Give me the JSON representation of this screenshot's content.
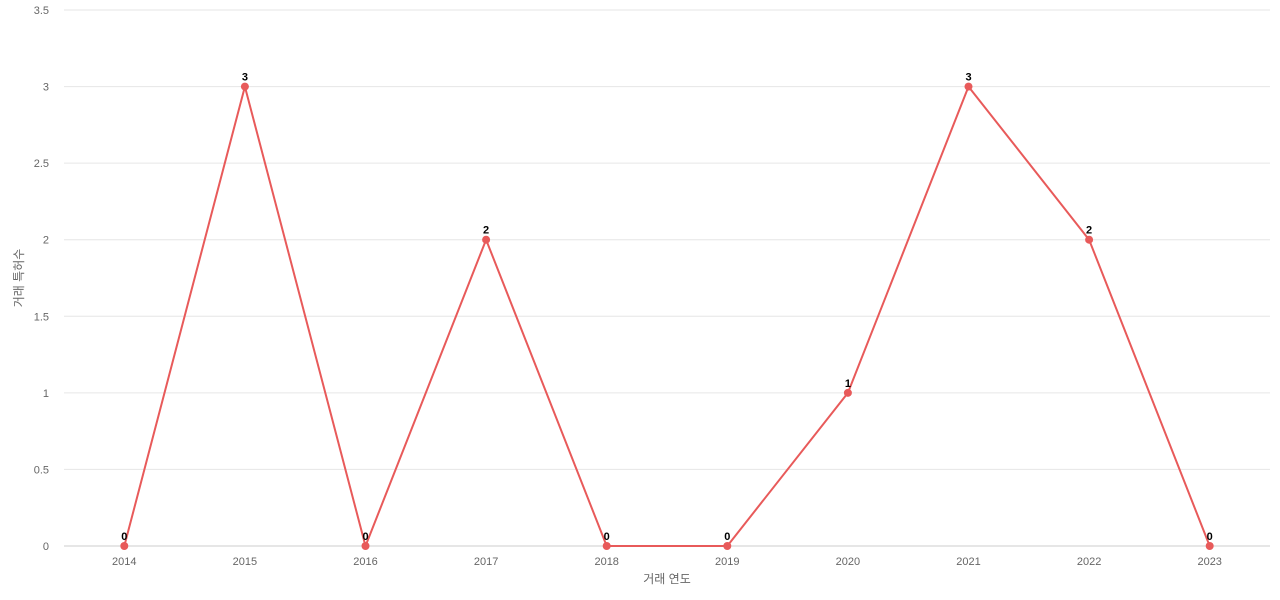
{
  "chart_data": {
    "type": "line",
    "title": "",
    "xlabel": "거래 연도",
    "ylabel": "거래 특허수",
    "categories": [
      "2014",
      "2015",
      "2016",
      "2017",
      "2018",
      "2019",
      "2020",
      "2021",
      "2022",
      "2023"
    ],
    "series": [
      {
        "values": [
          0,
          3,
          0,
          2,
          0,
          0,
          1,
          3,
          2,
          0
        ]
      }
    ],
    "data_labels": [
      "0",
      "3",
      "0",
      "2",
      "0",
      "0",
      "1",
      "3",
      "2",
      "0"
    ],
    "ylim": [
      0,
      3.5
    ],
    "yticks": [
      0,
      0.5,
      1,
      1.5,
      2,
      2.5,
      3,
      3.5
    ],
    "ytick_labels": [
      "0",
      "0.5",
      "1",
      "1.5",
      "2",
      "2.5",
      "3",
      "3.5"
    ],
    "grid": true,
    "legend": "none",
    "colors": {
      "series": "#e85a5a",
      "grid": "#e6e6e6",
      "axis": "#cccccc",
      "tick_text": "#666666",
      "data_label": "#000000"
    }
  }
}
